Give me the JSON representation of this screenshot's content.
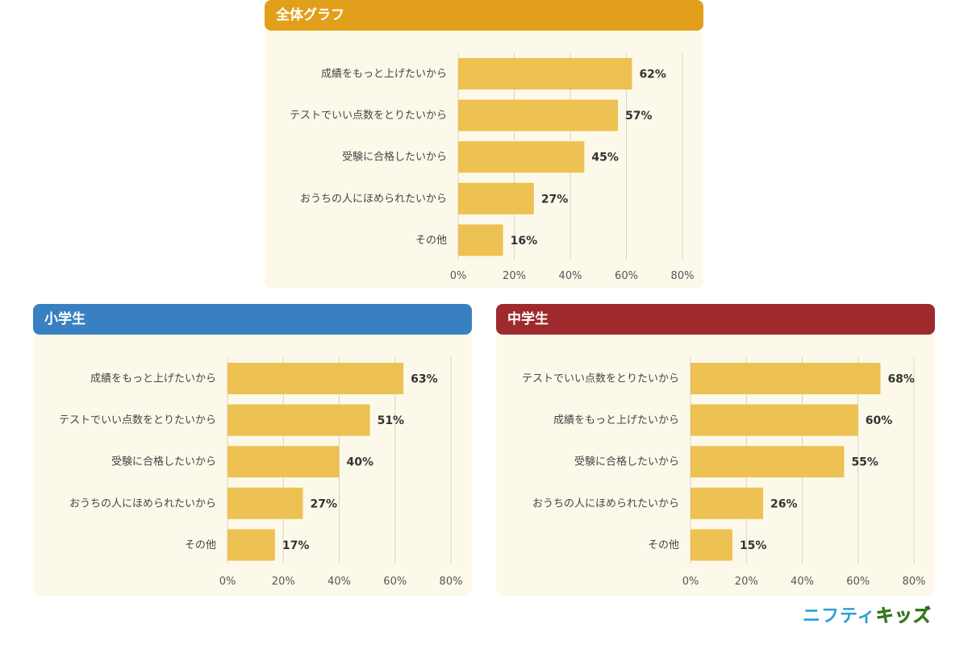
{
  "colors": {
    "bar": "#edc152",
    "panel_bg": "#fdf9ea",
    "header_overall": "#e19f1b",
    "header_elementary": "#3980c3",
    "header_junior_high": "#9f2a2d"
  },
  "chart_data": [
    {
      "type": "bar",
      "orientation": "horizontal",
      "title": "全体グラフ",
      "categories": [
        "成績をもっと上げたいから",
        "テストでいい点数をとりたいから",
        "受験に合格したいから",
        "おうちの人にほめられたいから",
        "その他"
      ],
      "values": [
        62,
        57,
        45,
        27,
        16
      ],
      "value_labels": [
        "62%",
        "57%",
        "45%",
        "27%",
        "16%"
      ],
      "xlim": [
        0,
        80
      ],
      "ticks": [
        "0%",
        "20%",
        "40%",
        "60%",
        "80%"
      ],
      "grid": true,
      "header_color": "#e19f1b"
    },
    {
      "type": "bar",
      "orientation": "horizontal",
      "title": "小学生",
      "categories": [
        "成績をもっと上げたいから",
        "テストでいい点数をとりたいから",
        "受験に合格したいから",
        "おうちの人にほめられたいから",
        "その他"
      ],
      "values": [
        63,
        51,
        40,
        27,
        17
      ],
      "value_labels": [
        "63%",
        "51%",
        "40%",
        "27%",
        "17%"
      ],
      "xlim": [
        0,
        80
      ],
      "ticks": [
        "0%",
        "20%",
        "40%",
        "60%",
        "80%"
      ],
      "grid": true,
      "header_color": "#3980c3"
    },
    {
      "type": "bar",
      "orientation": "horizontal",
      "title": "中学生",
      "categories": [
        "テストでいい点数をとりたいから",
        "成績をもっと上げたいから",
        "受験に合格したいから",
        "おうちの人にほめられたいから",
        "その他"
      ],
      "values": [
        68,
        60,
        55,
        26,
        15
      ],
      "value_labels": [
        "68%",
        "60%",
        "55%",
        "26%",
        "15%"
      ],
      "xlim": [
        0,
        80
      ],
      "ticks": [
        "0%",
        "20%",
        "40%",
        "60%",
        "80%"
      ],
      "grid": true,
      "header_color": "#9f2a2d"
    }
  ],
  "logo": {
    "part1": "ニフティ",
    "part2": "キッズ"
  }
}
